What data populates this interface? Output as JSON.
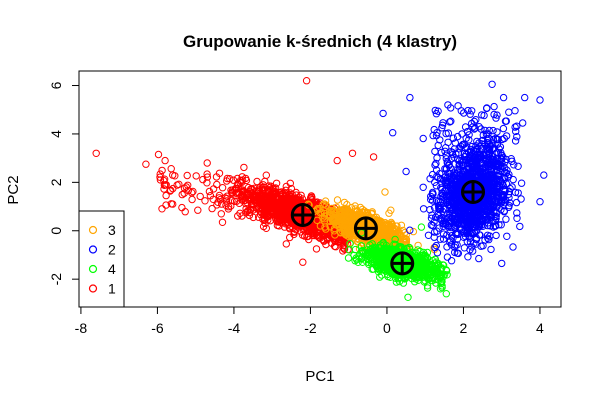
{
  "chart_data": {
    "type": "scatter",
    "title": "Grupowanie k-średnich (4 klastry)",
    "xlabel": "PC1",
    "ylabel": "PC2",
    "xlim": [
      -8.05,
      4.55
    ],
    "ylim": [
      -3.15,
      6.6
    ],
    "x_ticks": [
      -8,
      -6,
      -4,
      -2,
      0,
      2,
      4
    ],
    "y_ticks": [
      -2,
      0,
      2,
      4,
      6
    ],
    "grid": false,
    "legend_position": "bottom-left",
    "legend": [
      {
        "label": "3",
        "color": "#FFA500"
      },
      {
        "label": "2",
        "color": "#0000FF"
      },
      {
        "label": "4",
        "color": "#00FF00"
      },
      {
        "label": "1",
        "color": "#FF0000"
      }
    ],
    "series": [
      {
        "name": "1",
        "color": "#FF0000",
        "center": [
          -2.2,
          0.65
        ],
        "spread_note": "dense cloud"
      },
      {
        "name": "3",
        "color": "#FFA500",
        "center": [
          -0.55,
          0.1
        ]
      },
      {
        "name": "4",
        "color": "#00FF00",
        "center": [
          0.4,
          -1.35
        ]
      },
      {
        "name": "2",
        "color": "#0000FF",
        "center": [
          2.25,
          1.6
        ]
      }
    ],
    "centroids": [
      {
        "cluster": "1",
        "x": -2.2,
        "y": 0.65
      },
      {
        "cluster": "3",
        "x": -0.55,
        "y": 0.1
      },
      {
        "cluster": "4",
        "x": 0.4,
        "y": -1.35
      },
      {
        "cluster": "2",
        "x": 2.25,
        "y": 1.6
      }
    ],
    "outliers": [
      {
        "cluster": "1",
        "x": -7.6,
        "y": 3.2
      },
      {
        "cluster": "1",
        "x": -6.3,
        "y": 2.75
      },
      {
        "cluster": "1",
        "x": -5.8,
        "y": 2.9
      },
      {
        "cluster": "1",
        "x": -5.6,
        "y": 2.3
      },
      {
        "cluster": "1",
        "x": -5.6,
        "y": 1.1
      },
      {
        "cluster": "1",
        "x": -5.3,
        "y": 1.55
      },
      {
        "cluster": "1",
        "x": -4.7,
        "y": 2.8
      },
      {
        "cluster": "1",
        "x": -4.3,
        "y": 0.35
      },
      {
        "cluster": "1",
        "x": -2.1,
        "y": 6.2
      },
      {
        "cluster": "1",
        "x": -1.3,
        "y": 2.9
      },
      {
        "cluster": "1",
        "x": -0.9,
        "y": 3.2
      },
      {
        "cluster": "1",
        "x": -0.35,
        "y": 3.05
      },
      {
        "cluster": "1",
        "x": -2.2,
        "y": -1.3
      },
      {
        "cluster": "2",
        "x": 0.6,
        "y": 5.5
      },
      {
        "cluster": "2",
        "x": 2.75,
        "y": 6.05
      },
      {
        "cluster": "2",
        "x": 3.05,
        "y": 5.5
      },
      {
        "cluster": "2",
        "x": 3.6,
        "y": 5.5
      },
      {
        "cluster": "2",
        "x": 4.0,
        "y": 5.4
      },
      {
        "cluster": "2",
        "x": 3.55,
        "y": 4.45
      },
      {
        "cluster": "2",
        "x": -0.1,
        "y": 4.85
      },
      {
        "cluster": "2",
        "x": 0.15,
        "y": 4.05
      },
      {
        "cluster": "2",
        "x": 0.5,
        "y": 2.45
      },
      {
        "cluster": "2",
        "x": 4.1,
        "y": 2.3
      },
      {
        "cluster": "2",
        "x": 4.0,
        "y": 1.2
      },
      {
        "cluster": "2",
        "x": 2.4,
        "y": -1.15
      },
      {
        "cluster": "2",
        "x": 3.0,
        "y": -1.35
      },
      {
        "cluster": "3",
        "x": -0.05,
        "y": 1.6
      },
      {
        "cluster": "3",
        "x": 0.1,
        "y": 0.85
      },
      {
        "cluster": "4",
        "x": 0.9,
        "y": 0.15
      },
      {
        "cluster": "4",
        "x": 0.55,
        "y": -2.75
      },
      {
        "cluster": "4",
        "x": 1.4,
        "y": -2.4
      }
    ]
  }
}
